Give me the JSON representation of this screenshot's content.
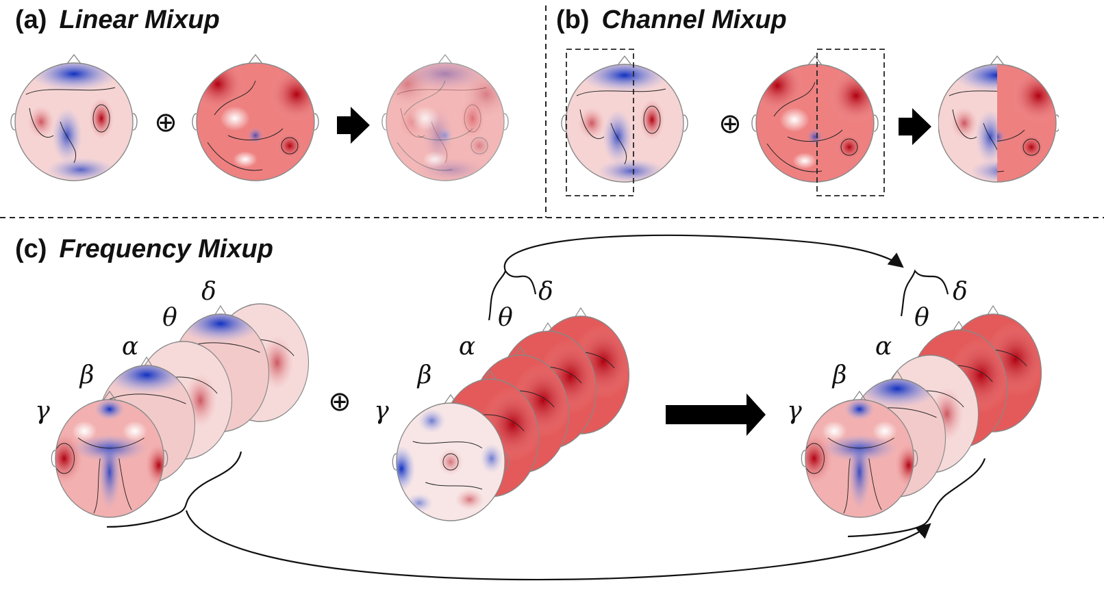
{
  "panels": {
    "a": {
      "tag": "(a)",
      "name": "Linear Mixup"
    },
    "b": {
      "tag": "(b)",
      "name": "Channel Mixup"
    },
    "c": {
      "tag": "(c)",
      "name": "Frequency Mixup"
    }
  },
  "operator_symbol": "⊕",
  "bands": [
    "γ",
    "β",
    "α",
    "θ",
    "δ"
  ],
  "colors": {
    "positive": "#d7191c",
    "negative": "#2b4fc9",
    "neutral": "#ffffff",
    "contour": "#222222"
  },
  "icons": [
    "head-topomap-icon",
    "arrow-right-icon",
    "oplus-icon",
    "brace-icon"
  ]
}
